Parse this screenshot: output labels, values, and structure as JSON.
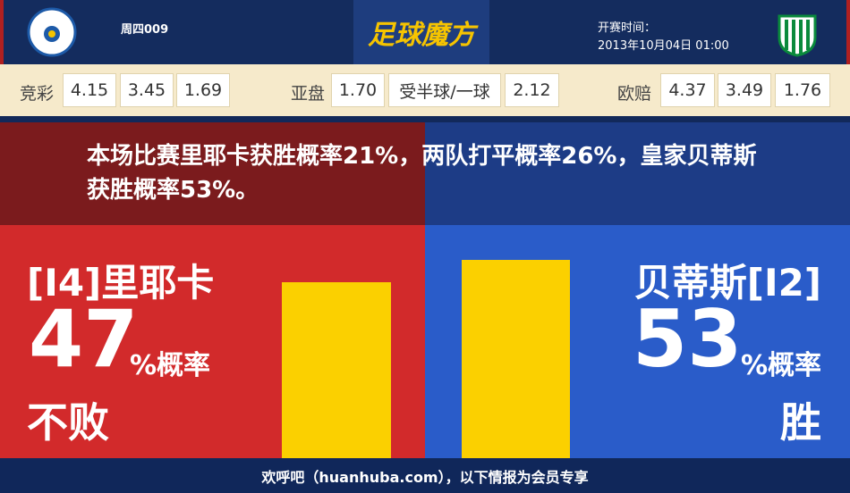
{
  "header": {
    "match": "周四009",
    "brand": "足球魔方",
    "kickoff_label": "开赛时间：",
    "kickoff_time": "2013年10月04日 01:00"
  },
  "odds": [
    {
      "label": "竞彩",
      "values": [
        "4.15",
        "3.45",
        "1.69"
      ]
    },
    {
      "label": "亚盘",
      "values": [
        "1.70",
        "受半球/一球",
        "2.12"
      ]
    },
    {
      "label": "欧赔",
      "values": [
        "4.37",
        "3.49",
        "1.76"
      ]
    }
  ],
  "summary": "本场比赛里耶卡获胜概率21%，两队打平概率26%，皇家贝蒂斯获胜概率53%。",
  "left": {
    "team": "[I4]里耶卡",
    "percent": 47,
    "suffix": "%概率",
    "result": "不败"
  },
  "right": {
    "team": "贝蒂斯[I2]",
    "percent": 53,
    "suffix": "%概率",
    "result": "胜"
  },
  "footer": "欢呼吧（huanhuba.com），以下情报为会员专享"
}
